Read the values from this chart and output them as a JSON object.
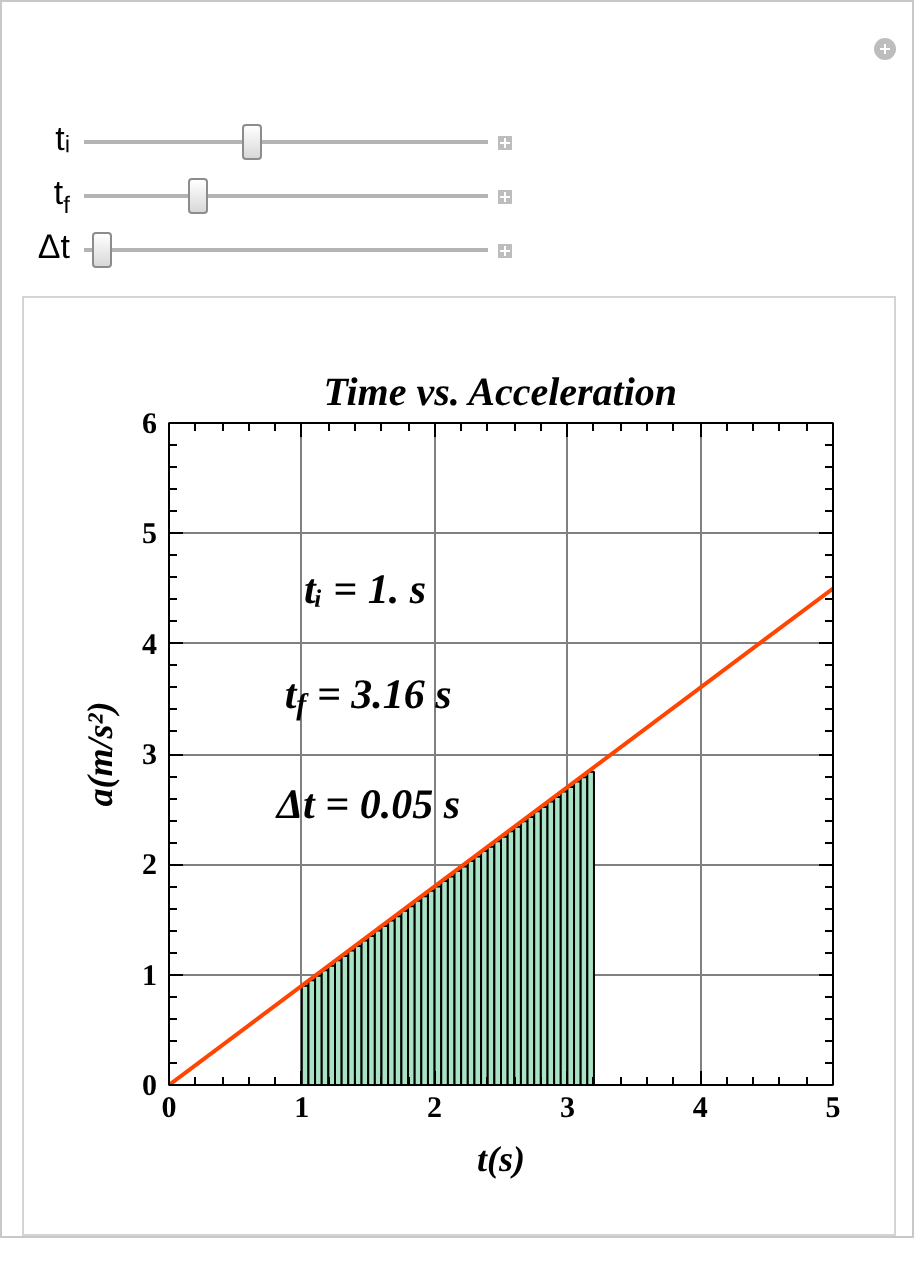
{
  "chart_data": {
    "type": "histogram",
    "title": "Time vs. Acceleration",
    "xlabel": "t(s)",
    "ylabel": "a(m/s²)",
    "xlim": [
      0,
      5
    ],
    "ylim": [
      0,
      6
    ],
    "xticks": [
      0,
      1,
      2,
      3,
      4,
      5
    ],
    "yticks": [
      0,
      1,
      2,
      3,
      4,
      5,
      6
    ],
    "grid": true,
    "annotations": [
      "tᵢ",
      "t$_{f}$",
      "Δt",
      "tᵢ = 1. s",
      "t$_{f}$ = 3.16 s",
      "Δt = 0.05 s"
    ],
    "series": [
      {
        "color": "#a8e4c4",
        "bins": [
          1,
          1.05,
          1.1,
          1.15,
          1.2,
          1.25,
          1.3,
          1.35,
          1.4,
          1.45,
          1.5,
          1.55,
          1.6,
          1.65,
          1.7,
          1.75,
          1.8,
          1.85,
          1.9,
          1.95,
          2,
          2.05,
          2.1,
          2.15,
          2.2,
          2.25,
          2.3,
          2.35,
          2.4,
          2.45,
          2.5,
          2.55,
          2.6,
          2.65,
          2.7,
          2.75,
          2.8,
          2.85,
          2.9,
          2.95,
          3,
          3.05,
          3.1,
          3.15,
          3.2
        ],
        "values": [
          0.9,
          0.95,
          0.99,
          1.04,
          1.08,
          1.13,
          1.17,
          1.22,
          1.26,
          1.31,
          1.35,
          1.4,
          1.44,
          1.49,
          1.53,
          1.58,
          1.62,
          1.67,
          1.71,
          1.76,
          1.8,
          1.85,
          1.89,
          1.94,
          1.98,
          2.03,
          2.07,
          2.12,
          2.16,
          2.21,
          2.25,
          2.3,
          2.34,
          2.39,
          2.43,
          2.48,
          2.52,
          2.57,
          2.61,
          2.66,
          2.7,
          2.75,
          2.79,
          2.84
        ]
      },
      {
        "type": "line",
        "color": "#ff4500",
        "x": [
          0,
          5
        ],
        "values": [
          0,
          4.5
        ]
      }
    ]
  }
}
